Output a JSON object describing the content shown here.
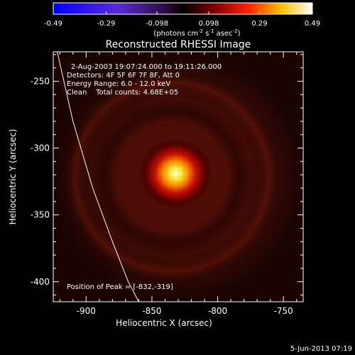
{
  "chart_data": {
    "type": "heatmap",
    "title": "Reconstructed RHESSI Image",
    "xlabel": "Heliocentric X (arcsec)",
    "ylabel": "Heliocentric Y (arcsec)",
    "xlim": [
      -925,
      -735
    ],
    "ylim": [
      -415,
      -228
    ],
    "x_ticks": [
      -900,
      -850,
      -800,
      -750
    ],
    "y_ticks": [
      -250,
      -300,
      -350,
      -400
    ],
    "colorbar": {
      "ticks": [
        -0.49,
        -0.29,
        -0.098,
        0.098,
        0.29,
        0.49
      ],
      "tick_labels": [
        "-0.49",
        "-0.29",
        "-0.098",
        "0.098",
        "0.29",
        "0.49"
      ],
      "range": [
        -0.49,
        0.49
      ],
      "units_label_parts": [
        "(photons cm",
        "-2",
        " s",
        "-1",
        " asec",
        "-2",
        ")"
      ],
      "colormap": "blue-black-red-yellow-white"
    },
    "peak": {
      "x": -832,
      "y": -319
    },
    "info_lines": [
      "2-Aug-2003 19:07:24.000 to 19:11:26.000",
      "Detectors: 4F 5F 6F 7F 8F, Att 0",
      "Energy Range: 6.0 - 12.0 keV",
      "Clean    Total counts: 4.68E+05"
    ],
    "peak_label": "Position of Peak = [-832,-319]",
    "timestamp": "5-Jun-2013 07:19",
    "grid": false
  }
}
